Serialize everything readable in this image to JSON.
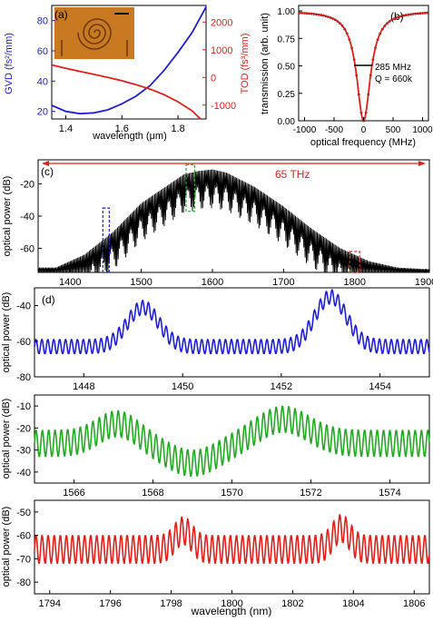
{
  "chart_data": [
    {
      "id": "a",
      "type": "line",
      "panel_label": "(a)",
      "xlabel": "wavelength (μm)",
      "ylabel_left": "GVD (fs²/mm)",
      "ylabel_right": "TOD (fs³/mm)",
      "xlim": [
        1.35,
        1.9
      ],
      "ylim_left": [
        15,
        90
      ],
      "ylim_right": [
        -1500,
        2600
      ],
      "x_ticks": [
        "1.4",
        "1.6",
        "1.8"
      ],
      "y_ticks_left": [
        "20",
        "40",
        "60",
        "80"
      ],
      "y_ticks_right": [
        "-1000",
        "0",
        "1000",
        "2000"
      ],
      "series": [
        {
          "axis": "left",
          "color": "#1f1fd6",
          "x": [
            1.35,
            1.4,
            1.45,
            1.5,
            1.55,
            1.6,
            1.65,
            1.7,
            1.75,
            1.8,
            1.85,
            1.9
          ],
          "y": [
            24,
            20,
            18.5,
            19,
            21,
            25,
            30,
            37,
            47,
            59,
            72,
            89
          ]
        },
        {
          "axis": "right",
          "color": "#e0201b",
          "x": [
            1.35,
            1.4,
            1.45,
            1.5,
            1.55,
            1.6,
            1.65,
            1.7,
            1.75,
            1.8,
            1.85,
            1.88
          ],
          "y": [
            450,
            330,
            220,
            110,
            0,
            -120,
            -260,
            -420,
            -620,
            -880,
            -1200,
            -1500
          ]
        }
      ],
      "inset": "micrograph of spiral resonator"
    },
    {
      "id": "b",
      "type": "line",
      "panel_label": "(b)",
      "xlabel": "optical frequency (MHz)",
      "ylabel": "transmission (arb. unit)",
      "xlim": [
        -1100,
        1100
      ],
      "ylim": [
        0,
        1.05
      ],
      "x_ticks": [
        "-1000",
        "-500",
        "0",
        "500",
        "1000"
      ],
      "y_ticks": [
        "0.00",
        "0.25",
        "0.50",
        "0.75",
        "1.00"
      ],
      "annotations": [
        "285 MHz",
        "Q = 660k"
      ],
      "fit": {
        "shape": "lorentzian-dip",
        "center": 0,
        "fwhm": 285,
        "min": 0.0,
        "color": "#e0201b"
      },
      "measured": {
        "color": "#000000",
        "x_step": 40
      }
    },
    {
      "id": "c",
      "type": "line",
      "panel_label": "(c)",
      "ylabel": "optical power (dB)",
      "xlim": [
        1355,
        1905
      ],
      "ylim": [
        -75,
        -5
      ],
      "x_ticks": [
        "1400",
        "1500",
        "1600",
        "1700",
        "1800",
        "1900"
      ],
      "y_ticks": [
        "-20",
        "-40",
        "-60"
      ],
      "span_label": "65 THz",
      "color": "#000000",
      "envelope": {
        "x": [
          1380,
          1420,
          1460,
          1500,
          1540,
          1560,
          1580,
          1600,
          1620,
          1660,
          1700,
          1740,
          1780,
          1820,
          1860,
          1900
        ],
        "y": [
          -74,
          -66,
          -52,
          -34,
          -22,
          -16,
          -14,
          -13,
          -15,
          -24,
          -36,
          -50,
          -62,
          -70,
          -74,
          -75
        ]
      },
      "highlight_boxes": [
        {
          "x": [
            1446,
            1455
          ],
          "y": [
            -75,
            -35
          ],
          "color": "#1f1fd6"
        },
        {
          "x": [
            1563,
            1575
          ],
          "y": [
            -37,
            -8
          ],
          "color": "#22aa22"
        },
        {
          "x": [
            1793,
            1807
          ],
          "y": [
            -75,
            -62
          ],
          "color": "#e0201b"
        }
      ]
    },
    {
      "id": "d1",
      "type": "line",
      "panel_label": "(d)",
      "ylabel": "optical power (dB)",
      "xlim": [
        1447,
        1455
      ],
      "ylim": [
        -80,
        -30
      ],
      "x_ticks": [
        "1448",
        "1450",
        "1452",
        "1454"
      ],
      "y_ticks": [
        "-40",
        "-60",
        "-80"
      ],
      "color": "#1f1fd6",
      "period_nm": 0.12,
      "baseline": -63,
      "peaks": [
        {
          "x": 1449.2,
          "height": 22,
          "width": 0.45
        },
        {
          "x": 1453.0,
          "height": 28,
          "width": 0.45
        }
      ],
      "ripple_amp": 4
    },
    {
      "id": "d2",
      "type": "line",
      "ylabel": "optical power (dB)",
      "xlim": [
        1565,
        1575
      ],
      "ylim": [
        -45,
        -5
      ],
      "x_ticks": [
        "1566",
        "1568",
        "1570",
        "1572",
        "1574"
      ],
      "y_ticks": [
        "-10",
        "-20",
        "-30",
        "-40"
      ],
      "color": "#22aa22",
      "period_nm": 0.16,
      "baseline": -27,
      "peaks": [
        {
          "x": 1567.1,
          "height": 9,
          "width": 0.7
        },
        {
          "x": 1569.0,
          "height": -9,
          "width": 0.9
        },
        {
          "x": 1571.3,
          "height": 11,
          "width": 0.9
        }
      ],
      "ripple_amp": 6
    },
    {
      "id": "d3",
      "type": "line",
      "ylabel": "optical power (dB)",
      "xlabel": "wavelength (nm)",
      "xlim": [
        1793.5,
        1806.5
      ],
      "ylim": [
        -85,
        -45
      ],
      "x_ticks": [
        "1794",
        "1796",
        "1798",
        "1800",
        "1802",
        "1804",
        "1806"
      ],
      "y_ticks": [
        "-50",
        "-60",
        "-70",
        "-80"
      ],
      "color": "#e0201b",
      "period_nm": 0.2,
      "baseline": -66,
      "peaks": [
        {
          "x": 1798.4,
          "height": 8,
          "width": 0.4
        },
        {
          "x": 1803.6,
          "height": 9,
          "width": 0.4
        }
      ],
      "ripple_amp": 6
    }
  ]
}
